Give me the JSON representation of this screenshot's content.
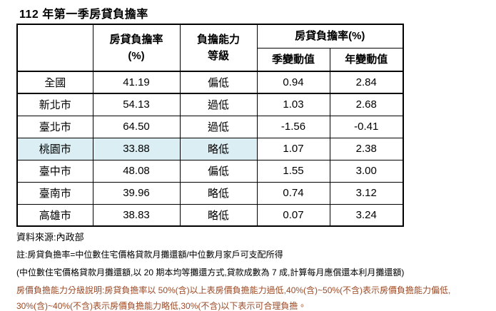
{
  "page": {
    "title": "112 年第一季房貸負擔率"
  },
  "table": {
    "highlighted_region": "桃園市",
    "header": {
      "region_blank": "",
      "burden_rate_line1": "房貸負擔率",
      "burden_rate_line2": "(%)",
      "ability_line1": "負擔能力",
      "ability_line2": "等級",
      "change_group": "房貸負擔率(%)",
      "quarter_change": "季變動值",
      "year_change": "年變動值"
    },
    "rows": [
      {
        "region": "全國",
        "burden_rate": "41.19",
        "ability": "偏低",
        "q_change": "0.94",
        "y_change": "2.84"
      },
      {
        "region": "新北市",
        "burden_rate": "54.13",
        "ability": "過低",
        "q_change": "1.03",
        "y_change": "2.68"
      },
      {
        "region": "臺北市",
        "burden_rate": "64.50",
        "ability": "過低",
        "q_change": "-1.56",
        "y_change": "-0.41"
      },
      {
        "region": "桃園市",
        "burden_rate": "33.88",
        "ability": "略低",
        "q_change": "1.07",
        "y_change": "2.38"
      },
      {
        "region": "臺中市",
        "burden_rate": "48.08",
        "ability": "偏低",
        "q_change": "1.55",
        "y_change": "3.00"
      },
      {
        "region": "臺南市",
        "burden_rate": "39.96",
        "ability": "略低",
        "q_change": "0.74",
        "y_change": "3.12"
      },
      {
        "region": "高雄市",
        "burden_rate": "38.83",
        "ability": "略低",
        "q_change": "0.07",
        "y_change": "3.24"
      }
    ]
  },
  "footer": {
    "source": "資料來源:內政部",
    "note1": "註:房貸負擔率=中位數住宅價格貸款月攤還額/中位數月家戶可支配所得",
    "note2": "(中位數住宅價格貸款月攤還額,以 20 期本均等攤還方式,貸款成數為 7 成,計算每月應償還本利月攤還額)",
    "note3": "房價負擔能力分級說明:房貸負擔率以 50%(含)以上表房價負擔能力過低,40%(含)~50%(不含)表示房價負擔能力偏低,",
    "note4": "30%(含)~40%(不含)表示房價負擔能力略低,30%(不含)以下表示可合理負擔。"
  },
  "colors": {
    "highlight_row": "#daeef3",
    "note_red": "#9c4a26",
    "border": "#000000"
  }
}
